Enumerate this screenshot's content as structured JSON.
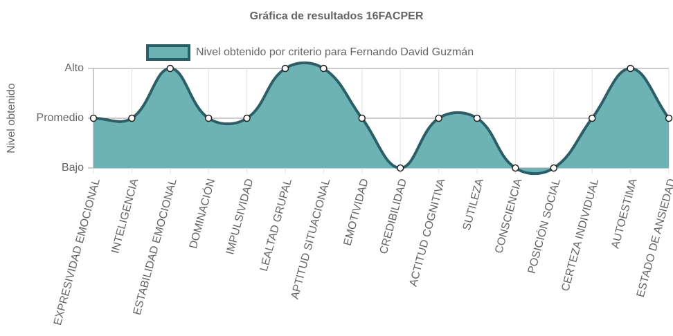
{
  "chart_data": {
    "type": "area",
    "title": "Gráfica de resultados 16FACPER",
    "y_label": "Nivel obtenido",
    "categories": [
      "EXPRESIVIDAD EMOCIONAL",
      "INTELIGENCIA",
      "ESTABILIDAD EMOCIONAL",
      "DOMINACIÓN",
      "IMPULSIVIDAD",
      "LEALTAD GRUPAL",
      "APTITUD SITUACIONAL",
      "EMOTIVIDAD",
      "CREDIBILIDAD",
      "ACTITUD COGNITIVA",
      "SUTILEZA",
      "CONSCIENCIA",
      "POSICIÓN SOCIAL",
      "CERTEZA INDIVIDUAL",
      "AUTOESTIMA",
      "ESTADO DE ANSIEDAD"
    ],
    "series": [
      {
        "name": "Nivel obtenido por criterio para Fernando David Guzmán",
        "color": "#2b5f68",
        "fill": "#6db3b6",
        "values": [
          1,
          1,
          2,
          1,
          1,
          2,
          2,
          1,
          0,
          1,
          1,
          0,
          0,
          1,
          2,
          1
        ]
      }
    ],
    "ylim": [
      0,
      2
    ],
    "yticks": [
      {
        "value": 0,
        "label": "Bajo"
      },
      {
        "value": 1,
        "label": "Promedio"
      },
      {
        "value": 2,
        "label": "Alto"
      }
    ],
    "grid": true
  }
}
